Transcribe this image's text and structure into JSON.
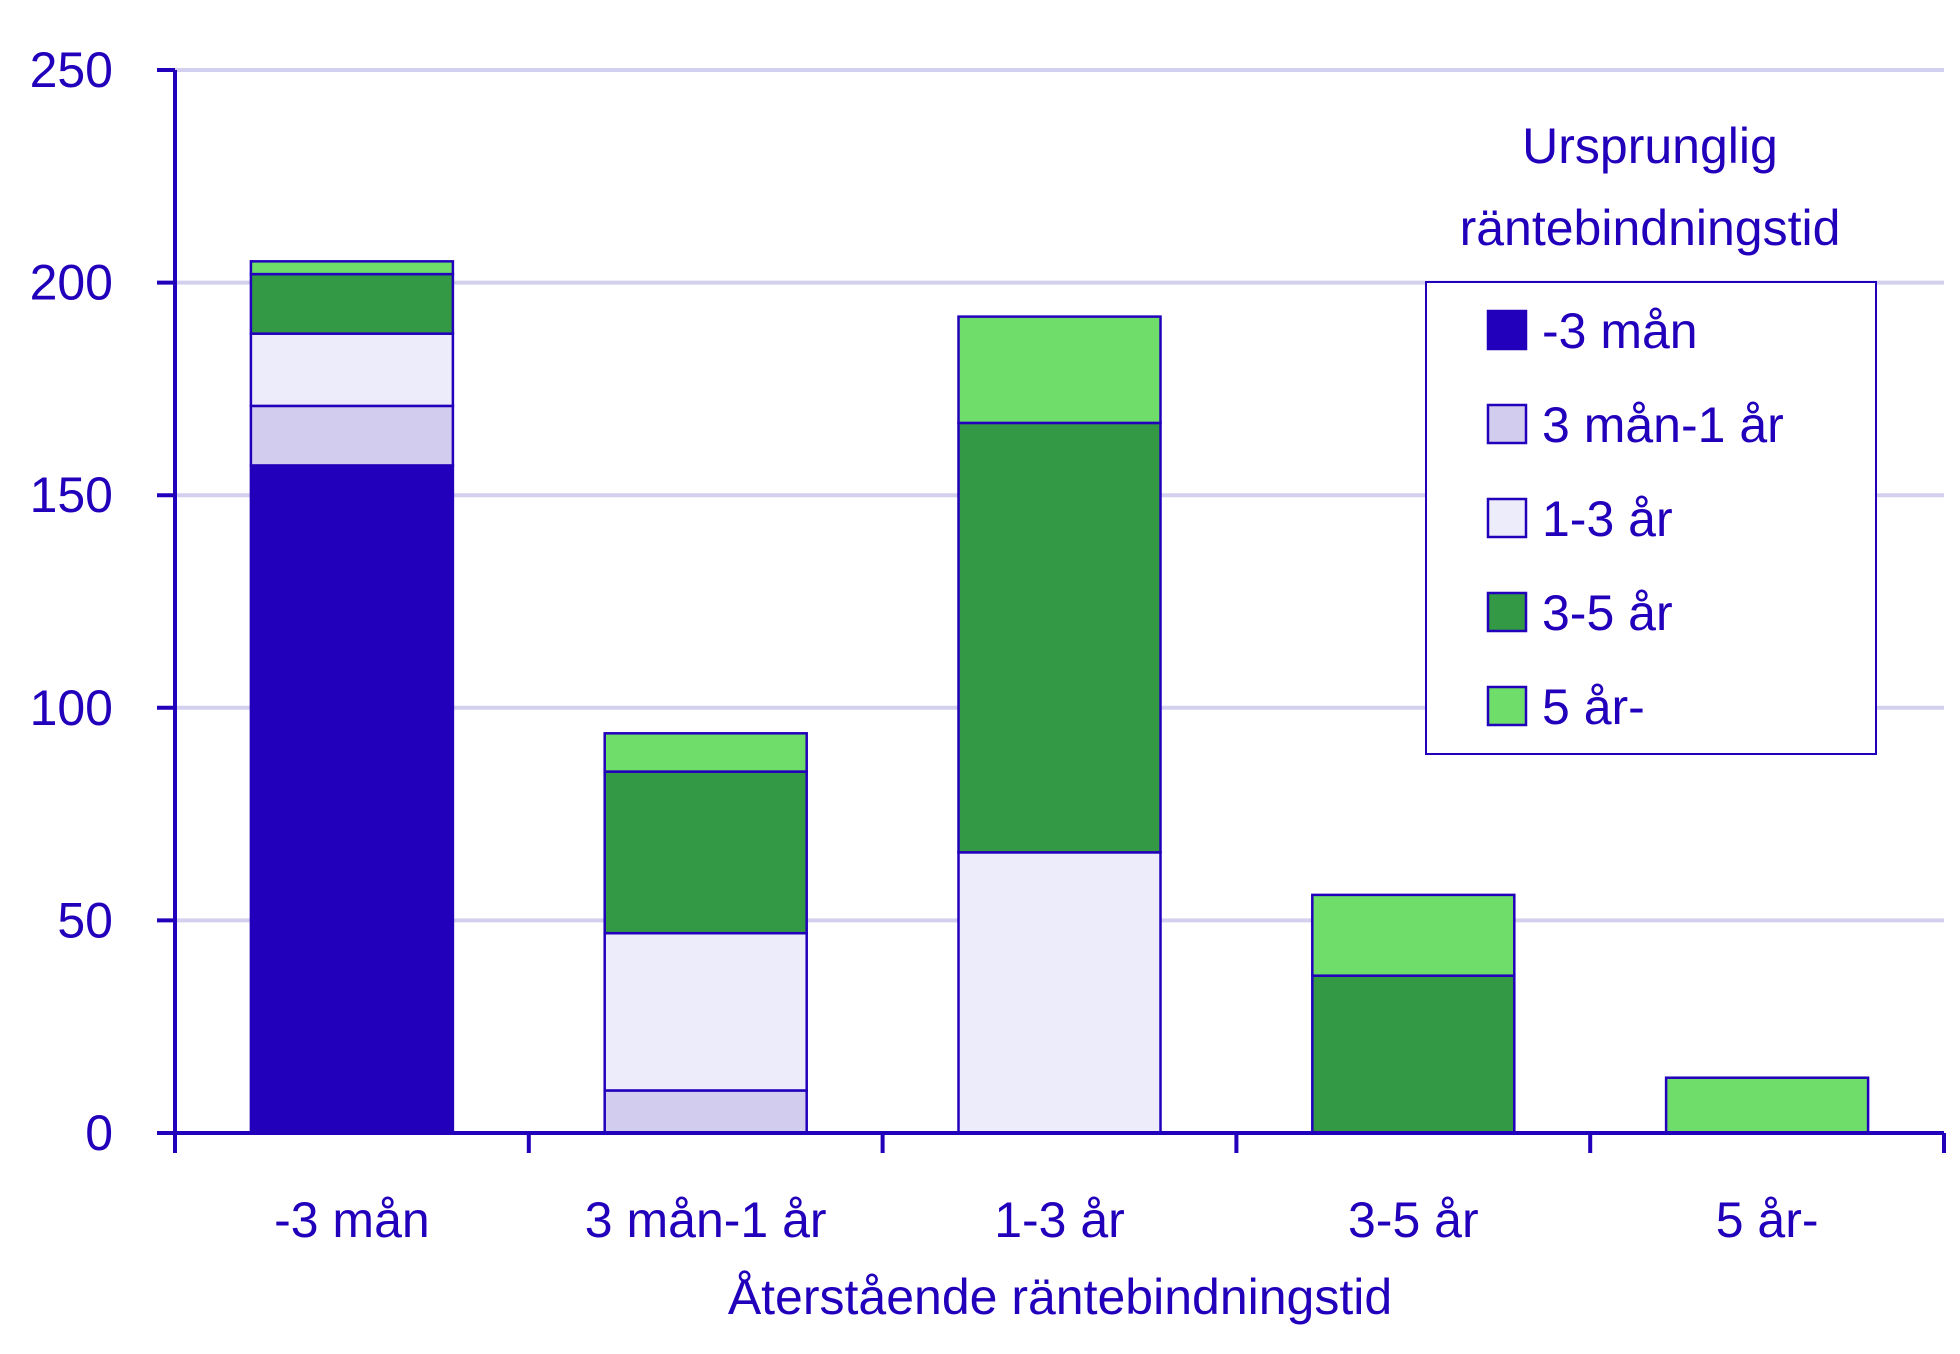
{
  "colors": {
    "axis": "#2200bb",
    "grid": "#d2d0ee",
    "text": "#2200bb"
  },
  "chart_data": {
    "type": "bar",
    "stacked": true,
    "categories": [
      "-3 mån",
      "3 mån-1 år",
      "1-3 år",
      "3-5 år",
      "5 år-"
    ],
    "series": [
      {
        "name": "-3 mån",
        "color": "#2200bb",
        "values": [
          157,
          0,
          0,
          0,
          0
        ]
      },
      {
        "name": "3 mån-1 år",
        "color": "#d2ccee",
        "values": [
          14,
          10,
          0,
          0,
          0
        ]
      },
      {
        "name": "1-3 år",
        "color": "#ececfb",
        "values": [
          17,
          37,
          66,
          0,
          0
        ]
      },
      {
        "name": "3-5 år",
        "color": "#339944",
        "values": [
          14,
          38,
          101,
          37,
          0
        ]
      },
      {
        "name": "5 år-",
        "color": "#6edd6a",
        "values": [
          3,
          9,
          25,
          19,
          13
        ]
      }
    ],
    "yticks": [
      0,
      50,
      100,
      150,
      200,
      250
    ],
    "ylim": [
      0,
      250
    ],
    "xlabel": "Återstående räntebindningstid",
    "legend_title_lines": [
      "Ursprunglig",
      "räntebindningstid"
    ],
    "grid": true,
    "legend_position": "top-right"
  }
}
